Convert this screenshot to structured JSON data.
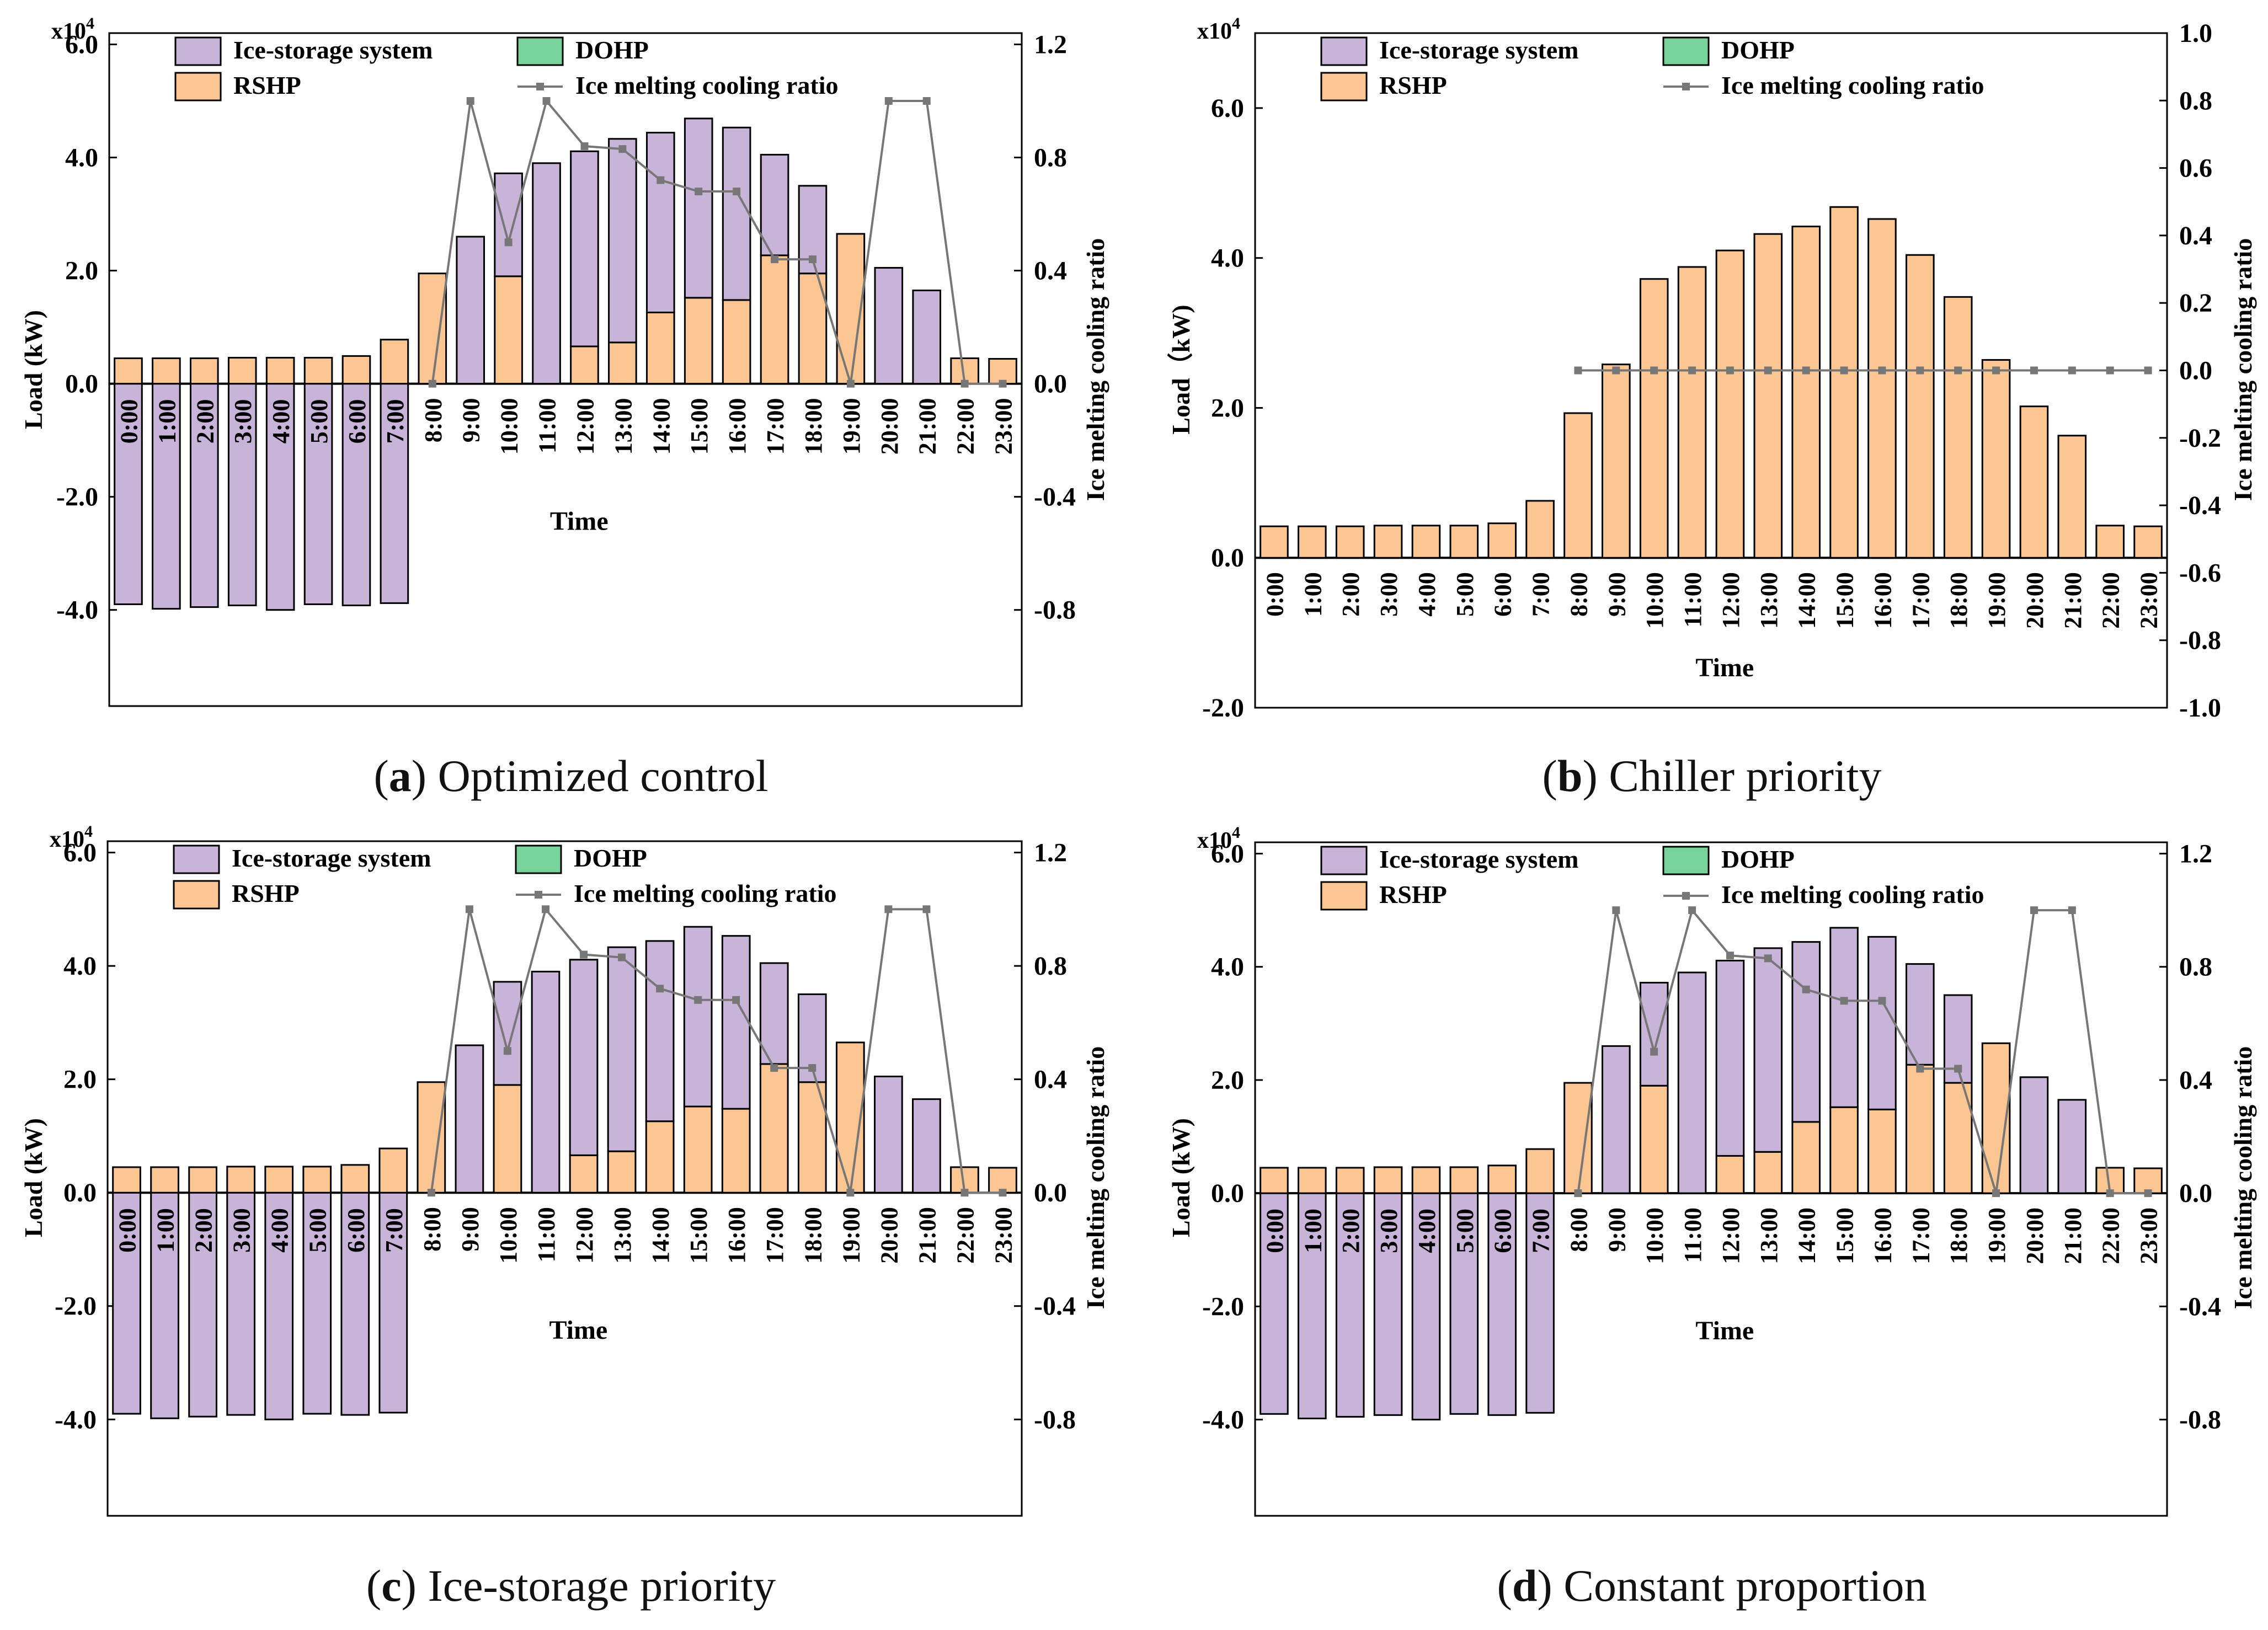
{
  "figure": {
    "colors": {
      "ice": "#c8b3d9",
      "rshp": "#fbc692",
      "dohp": "#78d39a",
      "line": "#777777",
      "axis": "#000000"
    },
    "legend": {
      "ice": "Ice-storage system",
      "dohp": "DOHP",
      "rshp": "RSHP",
      "ratio": "Ice melting cooling ratio"
    },
    "multiplier": {
      "base": "x10",
      "exp": "4"
    },
    "time_labels": [
      "0:00",
      "1:00",
      "2:00",
      "3:00",
      "4:00",
      "5:00",
      "6:00",
      "7:00",
      "8:00",
      "9:00",
      "10:00",
      "11:00",
      "12:00",
      "13:00",
      "14:00",
      "15:00",
      "16:00",
      "17:00",
      "18:00",
      "19:00",
      "20:00",
      "21:00",
      "22:00",
      "23:00"
    ]
  },
  "chart_data": [
    {
      "id": "a",
      "type": "bar",
      "caption_letter": "a",
      "caption_text": " Optimized control",
      "title": "",
      "xlabel": "Time",
      "ylabel": "Load (kW)",
      "y2label": "Ice melting cooling ratio",
      "ylim": [
        -5.7,
        6.2
      ],
      "yticks": [
        "-4.0",
        "-2.0",
        "0.0",
        "2.0",
        "4.0",
        "6.0"
      ],
      "ytick_values": [
        -4,
        -2,
        0,
        2,
        4,
        6
      ],
      "y2ticks": [
        "-0.8",
        "-0.4",
        "0.0",
        "0.4",
        "0.8",
        "1.2"
      ],
      "y2tick_values": [
        -0.8,
        -0.4,
        0,
        0.4,
        0.8,
        1.2
      ],
      "y2_scale": 5,
      "legend_pos": "top",
      "series": [
        {
          "name": "RSHP",
          "values": [
            0.45,
            0.45,
            0.45,
            0.46,
            0.46,
            0.46,
            0.49,
            0.78,
            1.95,
            0,
            1.9,
            0,
            0.66,
            0.73,
            1.26,
            1.52,
            1.48,
            2.27,
            1.95,
            2.65,
            0,
            0,
            0.45,
            0.44
          ]
        },
        {
          "name": "Ice-storage system",
          "values": [
            -3.9,
            -3.98,
            -3.95,
            -3.92,
            -4.0,
            -3.9,
            -3.92,
            -3.88,
            0,
            2.6,
            1.82,
            3.9,
            3.45,
            3.6,
            3.18,
            3.17,
            3.05,
            1.78,
            1.55,
            0,
            2.05,
            1.65,
            0,
            0
          ]
        },
        {
          "name": "Ice melting cooling ratio",
          "values": [
            null,
            null,
            null,
            null,
            null,
            null,
            null,
            null,
            0,
            1.0,
            0.5,
            1.0,
            0.84,
            0.83,
            0.72,
            0.68,
            0.68,
            0.44,
            0.44,
            0,
            1.0,
            1.0,
            0,
            0
          ]
        }
      ]
    },
    {
      "id": "b",
      "type": "bar",
      "caption_letter": "b",
      "caption_text": " Chiller priority",
      "title": "",
      "xlabel": "Time",
      "ylabel": "Load（kW)",
      "y2label": "Ice melting cooling ratio",
      "ylim": [
        -2.0,
        7.0
      ],
      "yticks": [
        "-2.0",
        "0.0",
        "2.0",
        "4.0",
        "6.0"
      ],
      "ytick_values": [
        -2,
        0,
        2,
        4,
        6
      ],
      "y2ticks": [
        "-1.0",
        "-0.8",
        "-0.6",
        "-0.4",
        "-0.2",
        "0.0",
        "0.2",
        "0.4",
        "0.6",
        "0.8",
        "1.0"
      ],
      "y2tick_values": [
        -1.0,
        -0.8,
        -0.6,
        -0.4,
        -0.2,
        0,
        0.2,
        0.4,
        0.6,
        0.8,
        1.0
      ],
      "y2lim": [
        -1.0,
        1.0
      ],
      "legend_pos": "top",
      "series": [
        {
          "name": "RSHP",
          "values": [
            0.42,
            0.42,
            0.42,
            0.43,
            0.43,
            0.43,
            0.46,
            0.76,
            1.93,
            2.58,
            3.72,
            3.88,
            4.1,
            4.32,
            4.42,
            4.68,
            4.52,
            4.04,
            3.48,
            2.64,
            2.02,
            1.63,
            0.43,
            0.42
          ]
        },
        {
          "name": "Ice-storage system",
          "values": [
            0,
            0,
            0,
            0,
            0,
            0,
            0,
            0,
            0,
            0,
            0,
            0,
            0,
            0,
            0,
            0,
            0,
            0,
            0,
            0,
            0,
            0,
            0,
            0
          ]
        },
        {
          "name": "Ice melting cooling ratio",
          "values": [
            null,
            null,
            null,
            null,
            null,
            null,
            null,
            null,
            0,
            0,
            0,
            0,
            0,
            0,
            0,
            0,
            0,
            0,
            0,
            0,
            0,
            0,
            0,
            0
          ]
        }
      ]
    },
    {
      "id": "c",
      "type": "bar",
      "caption_letter": "c",
      "caption_text": " Ice-storage priority",
      "title": "",
      "xlabel": "Time",
      "ylabel": "Load (kW)",
      "y2label": "Ice melting cooling ratio",
      "ylim": [
        -5.7,
        6.2
      ],
      "yticks": [
        "-4.0",
        "-2.0",
        "0.0",
        "2.0",
        "4.0",
        "6.0"
      ],
      "ytick_values": [
        -4,
        -2,
        0,
        2,
        4,
        6
      ],
      "y2ticks": [
        "-0.8",
        "-0.4",
        "0.0",
        "0.4",
        "0.8",
        "1.2"
      ],
      "y2tick_values": [
        -0.8,
        -0.4,
        0,
        0.4,
        0.8,
        1.2
      ],
      "y2_scale": 5,
      "legend_pos": "top",
      "series": [
        {
          "name": "RSHP",
          "values": [
            0.45,
            0.45,
            0.45,
            0.46,
            0.46,
            0.46,
            0.49,
            0.78,
            1.95,
            0,
            1.9,
            0,
            0.66,
            0.73,
            1.26,
            1.52,
            1.48,
            2.27,
            1.95,
            2.65,
            0,
            0,
            0.45,
            0.44
          ]
        },
        {
          "name": "Ice-storage system",
          "values": [
            -3.9,
            -3.98,
            -3.95,
            -3.92,
            -4.0,
            -3.9,
            -3.92,
            -3.88,
            0,
            2.6,
            1.82,
            3.9,
            3.45,
            3.6,
            3.18,
            3.17,
            3.05,
            1.78,
            1.55,
            0,
            2.05,
            1.65,
            0,
            0
          ]
        },
        {
          "name": "Ice melting cooling ratio",
          "values": [
            null,
            null,
            null,
            null,
            null,
            null,
            null,
            null,
            0,
            1.0,
            0.5,
            1.0,
            0.84,
            0.83,
            0.72,
            0.68,
            0.68,
            0.44,
            0.44,
            0,
            1.0,
            1.0,
            0,
            0
          ]
        }
      ]
    },
    {
      "id": "d",
      "type": "bar",
      "caption_letter": "d",
      "caption_text": " Constant proportion",
      "title": "",
      "xlabel": "Time",
      "ylabel": "Load (kW)",
      "y2label": "Ice melting cooling ratio",
      "ylim": [
        -5.7,
        6.2
      ],
      "yticks": [
        "-4.0",
        "-2.0",
        "0.0",
        "2.0",
        "4.0",
        "6.0"
      ],
      "ytick_values": [
        -4,
        -2,
        0,
        2,
        4,
        6
      ],
      "y2ticks": [
        "-0.8",
        "-0.4",
        "0.0",
        "0.4",
        "0.8",
        "1.2"
      ],
      "y2tick_values": [
        -0.8,
        -0.4,
        0,
        0.4,
        0.8,
        1.2
      ],
      "y2_scale": 5,
      "legend_pos": "top",
      "series": [
        {
          "name": "RSHP",
          "values": [
            0.45,
            0.45,
            0.45,
            0.46,
            0.46,
            0.46,
            0.49,
            0.78,
            1.95,
            0,
            1.9,
            0,
            0.66,
            0.73,
            1.26,
            1.52,
            1.48,
            2.27,
            1.95,
            2.65,
            0,
            0,
            0.45,
            0.44
          ]
        },
        {
          "name": "Ice-storage system",
          "values": [
            -3.9,
            -3.98,
            -3.95,
            -3.92,
            -4.0,
            -3.9,
            -3.92,
            -3.88,
            0,
            2.6,
            1.82,
            3.9,
            3.45,
            3.6,
            3.18,
            3.17,
            3.05,
            1.78,
            1.55,
            0,
            2.05,
            1.65,
            0,
            0
          ]
        },
        {
          "name": "Ice melting cooling ratio",
          "values": [
            null,
            null,
            null,
            null,
            null,
            null,
            null,
            null,
            0,
            1.0,
            0.5,
            1.0,
            0.84,
            0.83,
            0.72,
            0.68,
            0.68,
            0.44,
            0.44,
            0,
            1.0,
            1.0,
            0,
            0
          ]
        }
      ]
    }
  ]
}
